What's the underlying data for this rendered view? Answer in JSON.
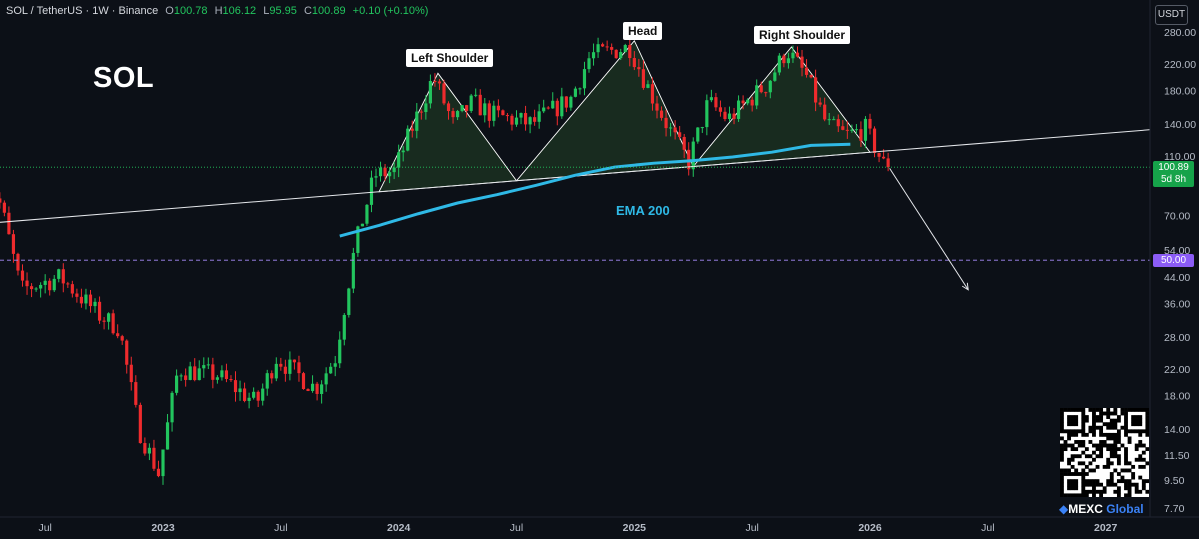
{
  "header": {
    "symbol": "SOL / TetherUS · 1W · Binance",
    "o_label": "O",
    "o_value": "100.78",
    "h_label": "H",
    "h_value": "106.12",
    "l_label": "L",
    "l_value": "95.95",
    "c_label": "C",
    "c_value": "100.89",
    "change": "+0.10 (+0.10%)"
  },
  "ticker_title": "SOL",
  "unit": "USDT",
  "annotations": {
    "left_shoulder": "Left Shoulder",
    "head": "Head",
    "right_shoulder": "Right Shoulder",
    "ema": "EMA 200"
  },
  "price_tags": {
    "last_price": "100.89",
    "countdown": "5d 8h",
    "level": "50.00"
  },
  "brand": {
    "mark": "◆",
    "name": "MEXC",
    "suffix": "Global"
  },
  "colors": {
    "background": "#0c1017",
    "up": "#22c55e",
    "down": "#ef2b2d",
    "ema": "#2fb9e6",
    "level": "#a78bfa",
    "pattern_fill": "#1f3b24"
  },
  "chart_data": {
    "type": "candlestick",
    "title": "",
    "xlabel": "",
    "ylabel": "",
    "y_scale": "log",
    "ylim": [
      7.0,
      330.0
    ],
    "y_ticks": [
      "280.00",
      "220.00",
      "180.00",
      "140.00",
      "110.00",
      "70.00",
      "54.00",
      "44.00",
      "36.00",
      "28.00",
      "22.00",
      "18.00",
      "14.00",
      "11.50",
      "9.50",
      "7.70"
    ],
    "x_ticks": [
      "Jul",
      "2023",
      "Jul",
      "2024",
      "Jul",
      "2025",
      "Jul",
      "2026",
      "Jul",
      "2027"
    ],
    "series": [
      {
        "name": "EMA 200",
        "type": "line",
        "x": [
          "2023-10",
          "2023-12",
          "2024-02",
          "2024-04",
          "2024-06",
          "2024-08",
          "2024-10",
          "2024-12",
          "2025-02",
          "2025-04",
          "2025-06",
          "2025-08",
          "2025-10",
          "2025-12"
        ],
        "y": [
          60,
          65,
          71,
          77,
          82,
          88,
          95,
          101,
          104,
          106,
          109,
          113,
          119,
          120
        ]
      }
    ],
    "price_path": {
      "x": [
        "2022-04",
        "2022-05",
        "2022-06",
        "2022-08",
        "2022-10",
        "2022-11",
        "2022-12",
        "2023-01",
        "2023-02",
        "2023-04",
        "2023-06",
        "2023-07",
        "2023-09",
        "2023-10",
        "2023-11",
        "2023-12",
        "2024-01",
        "2024-03",
        "2024-04",
        "2024-05",
        "2024-06",
        "2024-08",
        "2024-10",
        "2024-11",
        "2025-01",
        "2025-02",
        "2025-03",
        "2025-04",
        "2025-05",
        "2025-06",
        "2025-08",
        "2025-09",
        "2025-10",
        "2025-11",
        "2025-12",
        "2026-01",
        "2026-02"
      ],
      "y": [
        100,
        75,
        40,
        44,
        33,
        30,
        14,
        10,
        22,
        21,
        17,
        24,
        19,
        24,
        55,
        95,
        98,
        200,
        140,
        165,
        150,
        140,
        170,
        235,
        250,
        180,
        135,
        105,
        165,
        145,
        190,
        245,
        200,
        140,
        128,
        135,
        100.89
      ]
    },
    "pattern": {
      "name": "Head and Shoulders",
      "points": [
        {
          "label": "Left Shoulder",
          "date": "2024-03",
          "price": 205
        },
        {
          "label": "Head",
          "date": "2025-01",
          "price": 262
        },
        {
          "label": "Right Shoulder",
          "date": "2025-09",
          "price": 250
        }
      ],
      "neckline": {
        "from": {
          "date": "2022-04",
          "price": 66
        },
        "to": {
          "date": "2027-07",
          "price": 140
        }
      }
    },
    "levels": [
      {
        "price": 50,
        "label": "50.00"
      }
    ],
    "projection": {
      "from": {
        "date": "2026-02",
        "price": 100
      },
      "to": {
        "date": "2026-06",
        "price": 40
      }
    },
    "last_price": 100.89,
    "grid": false,
    "legend": "top-left"
  }
}
